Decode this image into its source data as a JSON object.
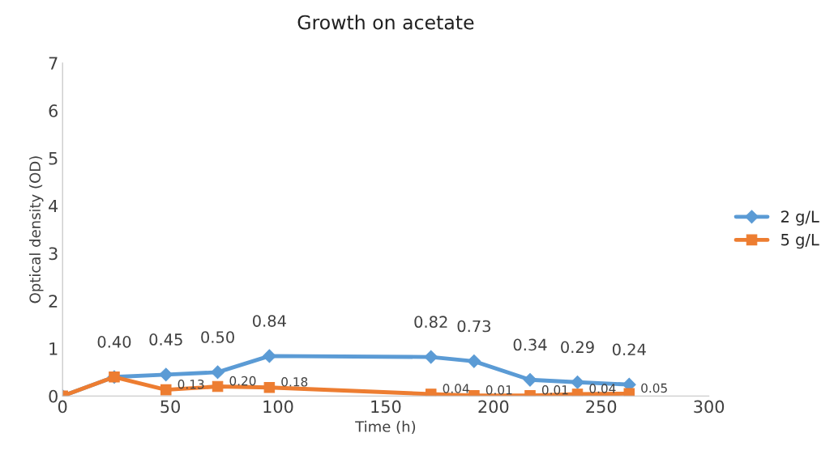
{
  "chart_data": {
    "type": "line",
    "title": "Growth on acetate",
    "xlabel": "Time (h)",
    "ylabel": "Optical density (OD)",
    "x": [
      0,
      24,
      48,
      72,
      96,
      171,
      191,
      217,
      239,
      263
    ],
    "series": [
      {
        "name": "2 g/L",
        "color": "#5b9bd5",
        "marker": "diamond",
        "values": [
          0,
          0.4,
          0.45,
          0.5,
          0.84,
          0.82,
          0.73,
          0.34,
          0.29,
          0.24
        ],
        "value_labels": [
          null,
          "0.40",
          "0.45",
          "0.50",
          "0.84",
          "0.82",
          "0.73",
          "0.34",
          "0.29",
          "0.24"
        ]
      },
      {
        "name": "5 g/L",
        "color": "#ed7d31",
        "marker": "square",
        "values": [
          0,
          0.4,
          0.13,
          0.2,
          0.18,
          0.04,
          0.01,
          0.01,
          0.04,
          0.05
        ],
        "value_labels": [
          null,
          null,
          "0.13",
          "0.20",
          "0.18",
          "0.04",
          "0.01",
          "0.01",
          "0.04",
          "0.05"
        ]
      }
    ],
    "xlim": [
      0,
      300
    ],
    "xticks": [
      0,
      50,
      100,
      150,
      200,
      250,
      300
    ],
    "ylim": [
      0,
      7
    ],
    "yticks": [
      0,
      1,
      2,
      3,
      4,
      5,
      6,
      7
    ],
    "grid": false,
    "legend": "right",
    "line_style": "solid"
  }
}
